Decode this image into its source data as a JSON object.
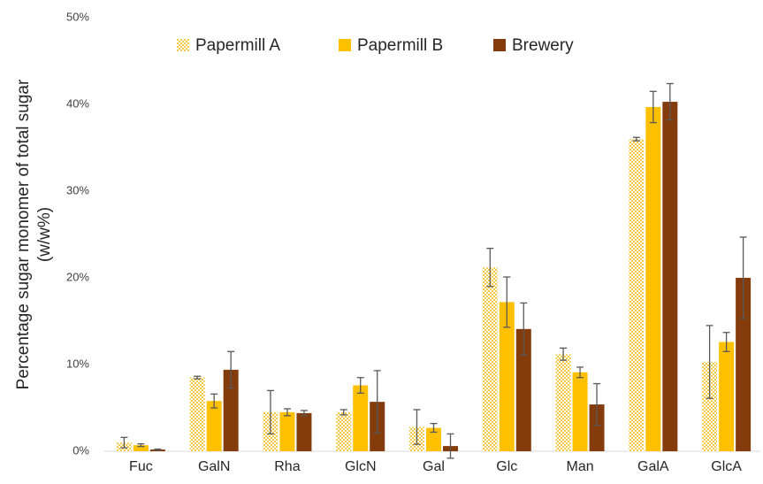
{
  "chart_data": {
    "type": "bar",
    "ylabel": [
      "Percentage sugar monomer of total sugar",
      "(w/w%)"
    ],
    "categories": [
      "Fuc",
      "GalN",
      "Rha",
      "GlcN",
      "Gal",
      "Glc",
      "Man",
      "GalA",
      "GlcA"
    ],
    "series": [
      {
        "name": "Papermill A",
        "color": "#f7c948",
        "pattern": "checkerboard",
        "values": [
          1.0,
          8.5,
          4.5,
          4.5,
          2.8,
          21.2,
          11.2,
          36.0,
          10.3
        ],
        "errors": [
          0.6,
          0.15,
          2.5,
          0.3,
          2.0,
          2.2,
          0.7,
          0.2,
          4.2
        ]
      },
      {
        "name": "Papermill B",
        "color": "#ffc000",
        "values": [
          0.7,
          5.8,
          4.5,
          7.6,
          2.7,
          17.2,
          9.1,
          39.7,
          12.6
        ],
        "errors": [
          0.15,
          0.8,
          0.4,
          0.9,
          0.5,
          2.9,
          0.6,
          1.8,
          1.1
        ]
      },
      {
        "name": "Brewery",
        "color": "#843c0c",
        "values": [
          0.2,
          9.4,
          4.4,
          5.7,
          0.6,
          14.1,
          5.4,
          40.3,
          20.0
        ],
        "errors": [
          0.05,
          2.1,
          0.3,
          3.6,
          1.4,
          3.0,
          2.4,
          2.1,
          4.7
        ]
      }
    ],
    "ylim": [
      0,
      50
    ],
    "yticks": [
      {
        "value": 0,
        "label": "0%"
      },
      {
        "value": 10,
        "label": "10%"
      },
      {
        "value": 20,
        "label": "20%"
      },
      {
        "value": 30,
        "label": "30%"
      },
      {
        "value": 40,
        "label": "40%"
      },
      {
        "value": 50,
        "label": "50%"
      }
    ],
    "grid": false,
    "legend": "top"
  }
}
